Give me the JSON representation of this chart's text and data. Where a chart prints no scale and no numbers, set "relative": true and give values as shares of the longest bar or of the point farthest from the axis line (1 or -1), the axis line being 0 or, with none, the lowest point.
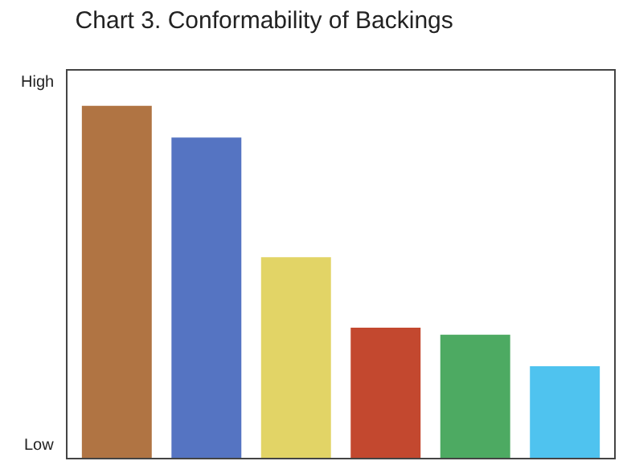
{
  "chart_data": {
    "type": "bar",
    "title": "Chart 3. Conformability of Backings",
    "relative": true,
    "categories": [
      null,
      null,
      null,
      null,
      null,
      null
    ],
    "values": [
      1,
      0.91,
      0.57,
      0.37,
      0.35,
      0.26
    ],
    "colors": [
      "#b07443",
      "#5574c2",
      "#e2d466",
      "#c3482f",
      "#4daa62",
      "#4fc3ef"
    ],
    "annotations": [
      "High",
      "Low"
    ],
    "grid": false
  }
}
